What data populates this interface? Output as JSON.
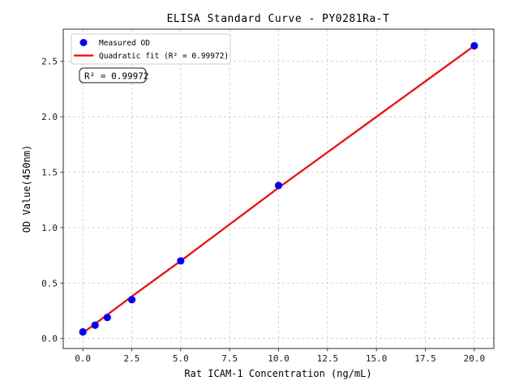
{
  "chart_data": {
    "type": "scatter",
    "title": "ELISA Standard Curve - PY0281Ra-T",
    "xlabel": "Rat ICAM-1 Concentration (ng/mL)",
    "ylabel": "OD Value(450nm)",
    "xlim": [
      -1,
      21
    ],
    "ylim": [
      -0.09,
      2.79
    ],
    "x_ticks": [
      0,
      2.5,
      5,
      7.5,
      10,
      12.5,
      15,
      17.5,
      20
    ],
    "x_tick_labels": [
      "0.0",
      "2.5",
      "5.0",
      "7.5",
      "10.0",
      "12.5",
      "15.0",
      "17.5",
      "20.0"
    ],
    "y_ticks": [
      0,
      0.5,
      1,
      1.5,
      2,
      2.5
    ],
    "y_tick_labels": [
      "0.0",
      "0.5",
      "1.0",
      "1.5",
      "2.0",
      "2.5"
    ],
    "grid": true,
    "legend_position": "upper left",
    "series": [
      {
        "name": "Measured OD",
        "type": "scatter",
        "color": "#0000ff",
        "x": [
          0,
          0.625,
          1.25,
          2.5,
          5,
          10,
          20
        ],
        "y": [
          0.06,
          0.12,
          0.19,
          0.35,
          0.7,
          1.38,
          2.64
        ]
      },
      {
        "name": "Quadratic fit (R² = 0.99972)",
        "type": "line",
        "color": "#ff0000",
        "x": [
          0,
          2.5,
          5,
          7.5,
          10,
          12.5,
          15,
          17.5,
          20
        ],
        "y": [
          0.05,
          0.38,
          0.7,
          1.03,
          1.36,
          1.68,
          2.0,
          2.32,
          2.64
        ]
      }
    ],
    "annotation": {
      "text": "R² = 0.99972"
    },
    "r_squared": "0.99972",
    "colors": {
      "grid": "#c9c9c9",
      "spine": "#2b2b2b",
      "background": "#ffffff",
      "legend_border": "#cccccc"
    }
  }
}
